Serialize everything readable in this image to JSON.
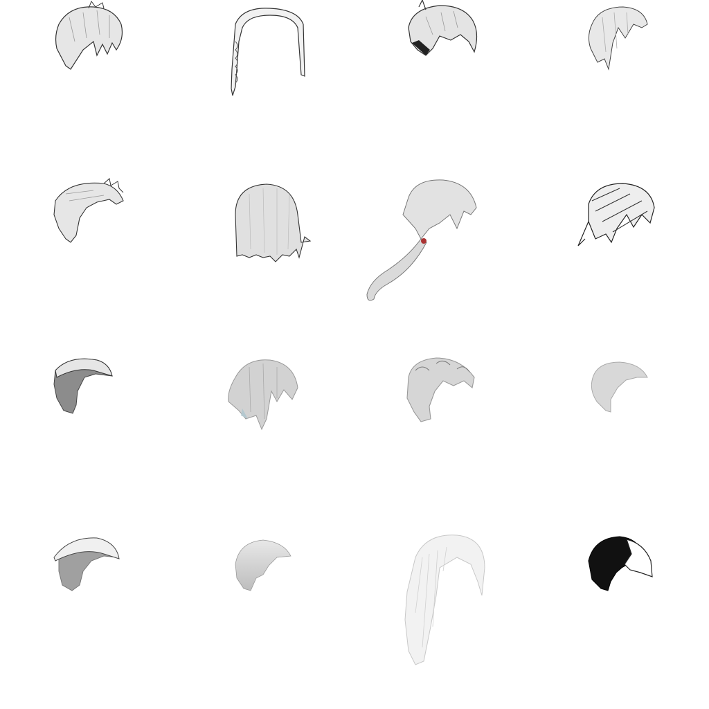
{
  "sheet": {
    "background": "#ffffff",
    "rows": 4,
    "columns": 4,
    "items": [
      {
        "name": "messy-short-hair",
        "style": "gray-sketch"
      },
      {
        "name": "braided-outline-hair",
        "style": "outline"
      },
      {
        "name": "spiky-bob-hair",
        "style": "gray-sketch"
      },
      {
        "name": "bob-with-fringe-hair",
        "style": "gray-sketch"
      },
      {
        "name": "wild-swept-hair",
        "style": "gray-sketch"
      },
      {
        "name": "straight-bob-hair",
        "style": "gray-sketch"
      },
      {
        "name": "long-ponytail-hair",
        "style": "gray-sketch"
      },
      {
        "name": "layered-spiky-hair",
        "style": "dark-sketch"
      },
      {
        "name": "pompadour-dark-hair",
        "style": "dark-gray"
      },
      {
        "name": "shaggy-gray-hair",
        "style": "muted-gray"
      },
      {
        "name": "curly-tufted-hair",
        "style": "muted-gray"
      },
      {
        "name": "smooth-cap-hair",
        "style": "light-gray"
      },
      {
        "name": "swept-undercut-hair",
        "style": "dark-gray"
      },
      {
        "name": "smooth-round-hair",
        "style": "light-gray"
      },
      {
        "name": "long-flowing-hair",
        "style": "pale"
      },
      {
        "name": "black-white-cap-hair",
        "style": "black"
      }
    ]
  }
}
